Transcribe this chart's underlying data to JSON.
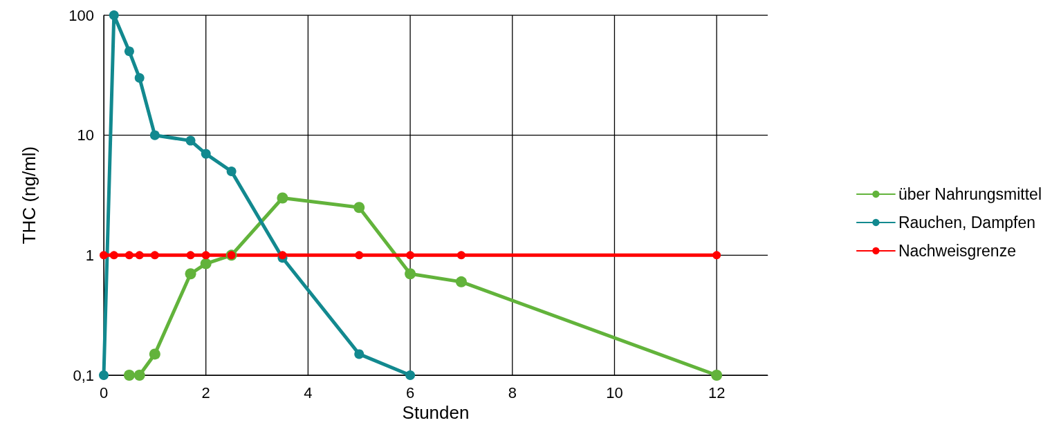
{
  "chart_data": {
    "type": "line",
    "xlabel": "Stunden",
    "ylabel": "THC (ng/ml)",
    "log": "y",
    "grid": true,
    "legend": "right",
    "marker": "circle",
    "line_style": "solid",
    "xlim": [
      0,
      13
    ],
    "xticks": [
      0,
      2,
      4,
      6,
      8,
      10,
      12
    ],
    "ylim": [
      0.1,
      100
    ],
    "yticks": [
      {
        "value": 0.1,
        "label": "0,1"
      },
      1,
      10,
      100
    ],
    "series": [
      {
        "name": "über Nahrungsmittel",
        "color": "#62b33b",
        "x": [
          0.5,
          0.7,
          1,
          1.7,
          2,
          2.5,
          3.5,
          5,
          6,
          7,
          12
        ],
        "values": [
          0.1,
          0.1,
          0.15,
          0.7,
          0.85,
          1,
          3,
          2.5,
          0.7,
          0.6,
          0.1
        ]
      },
      {
        "name": "Rauchen, Dampfen",
        "color": "#12898f",
        "x": [
          0,
          0.2,
          0.5,
          0.7,
          1,
          1.7,
          2,
          2.5,
          3.5,
          5,
          6
        ],
        "values": [
          0.1,
          100,
          50,
          30,
          10,
          9,
          7,
          5,
          0.95,
          0.15,
          0.1
        ]
      },
      {
        "name": "Nachweisgrenze",
        "color": "#ff0000",
        "x": [
          0,
          0.2,
          0.5,
          0.7,
          1,
          1.7,
          2,
          2.5,
          3.5,
          5,
          6,
          7,
          12
        ],
        "values": [
          1,
          1,
          1,
          1,
          1,
          1,
          1,
          1,
          1,
          1,
          1,
          1,
          1
        ]
      }
    ]
  }
}
